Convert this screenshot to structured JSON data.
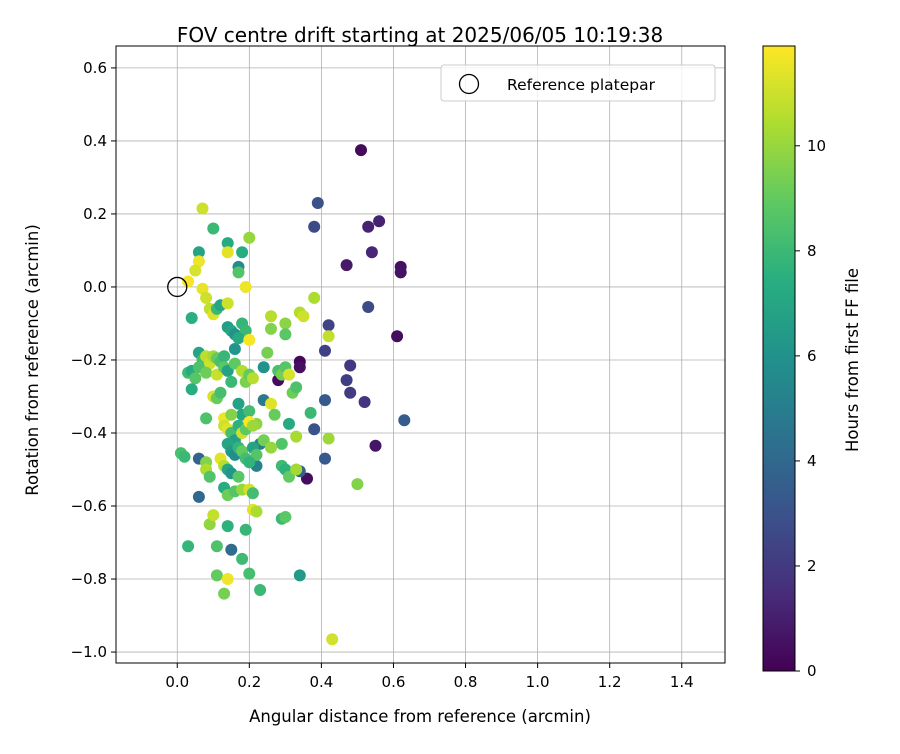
{
  "chart_data": {
    "type": "scatter",
    "title": "FOV centre drift starting at 2025/06/05 10:19:38",
    "xlabel": "Angular distance from reference (arcmin)",
    "ylabel": "Rotation from reference (arcmin)",
    "xlim": [
      -0.17,
      1.52
    ],
    "ylim": [
      -1.03,
      0.66
    ],
    "xticks": [
      0.0,
      0.2,
      0.4,
      0.6,
      0.8,
      1.0,
      1.2,
      1.4
    ],
    "xtick_labels": [
      "0.0",
      "0.2",
      "0.4",
      "0.6",
      "0.8",
      "1.0",
      "1.2",
      "1.4"
    ],
    "yticks": [
      0.6,
      0.4,
      0.2,
      0.0,
      -0.2,
      -0.4,
      -0.6,
      -0.8,
      -1.0
    ],
    "ytick_labels": [
      "0.6",
      "0.4",
      "0.2",
      "0.0",
      "−0.2",
      "−0.4",
      "−0.6",
      "−0.8",
      "−1.0"
    ],
    "grid": true,
    "colormap": "viridis",
    "colorbar": {
      "label": "Hours from first FF file",
      "range": [
        0,
        11.9
      ],
      "ticks": [
        0,
        2,
        4,
        6,
        8,
        10
      ],
      "tick_labels": [
        "0",
        "2",
        "4",
        "6",
        "8",
        "10"
      ]
    },
    "legend": {
      "position": "top-right",
      "entries": [
        "Reference platepar"
      ]
    },
    "reference": {
      "x": 0.0,
      "y": 0.0,
      "label": "Reference platepar"
    },
    "points": [
      [
        0.51,
        0.375,
        0.3
      ],
      [
        0.39,
        0.23,
        2.9
      ],
      [
        0.56,
        0.18,
        1.1
      ],
      [
        0.53,
        0.165,
        1.2
      ],
      [
        0.38,
        0.165,
        2.6
      ],
      [
        0.54,
        0.095,
        1.3
      ],
      [
        0.62,
        0.055,
        0.5
      ],
      [
        0.62,
        0.04,
        0.6
      ],
      [
        0.47,
        0.06,
        0.8
      ],
      [
        0.53,
        -0.055,
        2.7
      ],
      [
        0.42,
        -0.105,
        2.4
      ],
      [
        0.61,
        -0.135,
        0.4
      ],
      [
        0.41,
        -0.175,
        2.3
      ],
      [
        0.34,
        -0.205,
        0.2
      ],
      [
        0.34,
        -0.22,
        0.5
      ],
      [
        0.48,
        -0.215,
        1.9
      ],
      [
        0.47,
        -0.255,
        2.2
      ],
      [
        0.28,
        -0.255,
        0.3
      ],
      [
        0.48,
        -0.29,
        2.1
      ],
      [
        0.52,
        -0.315,
        1.8
      ],
      [
        0.41,
        -0.31,
        3.3
      ],
      [
        0.63,
        -0.365,
        3.4
      ],
      [
        0.38,
        -0.39,
        3.0
      ],
      [
        0.55,
        -0.435,
        0.7
      ],
      [
        0.41,
        -0.47,
        3.3
      ],
      [
        0.36,
        -0.525,
        0.4
      ],
      [
        0.34,
        -0.505,
        3.6
      ],
      [
        0.06,
        -0.47,
        3.8
      ],
      [
        0.06,
        -0.575,
        4.0
      ],
      [
        0.15,
        -0.72,
        4.2
      ],
      [
        0.34,
        -0.79,
        6.4
      ],
      [
        0.22,
        -0.49,
        5.2
      ],
      [
        0.23,
        -0.43,
        5.0
      ],
      [
        0.24,
        -0.31,
        4.8
      ],
      [
        0.16,
        -0.17,
        6.2
      ],
      [
        0.17,
        0.055,
        5.8
      ],
      [
        0.06,
        0.095,
        6.9
      ],
      [
        0.14,
        0.12,
        7.2
      ],
      [
        0.18,
        0.095,
        7.4
      ],
      [
        0.1,
        0.16,
        8.0
      ],
      [
        0.17,
        0.04,
        8.6
      ],
      [
        0.07,
        0.215,
        11.0
      ],
      [
        0.2,
        0.135,
        10.0
      ],
      [
        0.14,
        0.095,
        11.4
      ],
      [
        0.06,
        0.07,
        11.6
      ],
      [
        0.05,
        0.045,
        11.2
      ],
      [
        0.03,
        0.015,
        11.8
      ],
      [
        0.07,
        -0.005,
        11.5
      ],
      [
        0.08,
        -0.03,
        11.0
      ],
      [
        0.09,
        -0.06,
        10.8
      ],
      [
        0.1,
        -0.075,
        11.3
      ],
      [
        0.11,
        -0.06,
        8.0
      ],
      [
        0.12,
        -0.05,
        7.0
      ],
      [
        0.14,
        -0.045,
        11.0
      ],
      [
        0.19,
        0.0,
        11.6
      ],
      [
        0.04,
        -0.085,
        7.5
      ],
      [
        0.14,
        -0.11,
        6.5
      ],
      [
        0.15,
        -0.12,
        7.0
      ],
      [
        0.16,
        -0.13,
        6.0
      ],
      [
        0.18,
        -0.1,
        7.8
      ],
      [
        0.19,
        -0.12,
        8.0
      ],
      [
        0.17,
        -0.14,
        7.2
      ],
      [
        0.2,
        -0.145,
        11.8
      ],
      [
        0.25,
        -0.18,
        9.4
      ],
      [
        0.26,
        -0.115,
        9.6
      ],
      [
        0.26,
        -0.08,
        10.6
      ],
      [
        0.3,
        -0.1,
        9.8
      ],
      [
        0.3,
        -0.13,
        8.8
      ],
      [
        0.34,
        -0.07,
        10.5
      ],
      [
        0.35,
        -0.08,
        11.0
      ],
      [
        0.38,
        -0.03,
        10.4
      ],
      [
        0.42,
        -0.135,
        10.8
      ],
      [
        0.06,
        -0.18,
        7.0
      ],
      [
        0.07,
        -0.2,
        8.2
      ],
      [
        0.08,
        -0.19,
        10.7
      ],
      [
        0.09,
        -0.21,
        11.0
      ],
      [
        0.1,
        -0.19,
        10.2
      ],
      [
        0.11,
        -0.195,
        9.0
      ],
      [
        0.12,
        -0.205,
        8.4
      ],
      [
        0.13,
        -0.19,
        7.9
      ],
      [
        0.03,
        -0.235,
        8.1
      ],
      [
        0.04,
        -0.23,
        7.3
      ],
      [
        0.05,
        -0.25,
        8.7
      ],
      [
        0.06,
        -0.22,
        8.5
      ],
      [
        0.08,
        -0.235,
        9.2
      ],
      [
        0.11,
        -0.24,
        10.9
      ],
      [
        0.13,
        -0.22,
        8.8
      ],
      [
        0.14,
        -0.23,
        6.8
      ],
      [
        0.15,
        -0.26,
        8.0
      ],
      [
        0.16,
        -0.21,
        8.9
      ],
      [
        0.18,
        -0.23,
        10.5
      ],
      [
        0.19,
        -0.26,
        9.5
      ],
      [
        0.2,
        -0.24,
        9.0
      ],
      [
        0.21,
        -0.25,
        10.6
      ],
      [
        0.24,
        -0.22,
        6.0
      ],
      [
        0.28,
        -0.23,
        8.4
      ],
      [
        0.29,
        -0.24,
        9.4
      ],
      [
        0.3,
        -0.22,
        8.7
      ],
      [
        0.31,
        -0.24,
        11.2
      ],
      [
        0.32,
        -0.29,
        9.2
      ],
      [
        0.33,
        -0.275,
        8.5
      ],
      [
        0.04,
        -0.28,
        7.4
      ],
      [
        0.1,
        -0.3,
        11.2
      ],
      [
        0.11,
        -0.305,
        9.1
      ],
      [
        0.12,
        -0.29,
        8.3
      ],
      [
        0.17,
        -0.32,
        6.8
      ],
      [
        0.18,
        -0.35,
        7.1
      ],
      [
        0.2,
        -0.34,
        8.2
      ],
      [
        0.22,
        -0.375,
        9.8
      ],
      [
        0.26,
        -0.32,
        11.3
      ],
      [
        0.27,
        -0.35,
        9.1
      ],
      [
        0.29,
        -0.43,
        8.6
      ],
      [
        0.31,
        -0.375,
        7.2
      ],
      [
        0.33,
        -0.41,
        10.3
      ],
      [
        0.37,
        -0.345,
        8.0
      ],
      [
        0.42,
        -0.415,
        10.1
      ],
      [
        0.08,
        -0.36,
        8.5
      ],
      [
        0.13,
        -0.36,
        11.6
      ],
      [
        0.13,
        -0.38,
        11.0
      ],
      [
        0.14,
        -0.39,
        11.4
      ],
      [
        0.15,
        -0.35,
        9.6
      ],
      [
        0.15,
        -0.4,
        8.3
      ],
      [
        0.16,
        -0.42,
        6.6
      ],
      [
        0.17,
        -0.38,
        7.6
      ],
      [
        0.18,
        -0.4,
        11.0
      ],
      [
        0.19,
        -0.39,
        8.9
      ],
      [
        0.2,
        -0.37,
        11.9
      ],
      [
        0.21,
        -0.38,
        10.1
      ],
      [
        0.14,
        -0.43,
        7.0
      ],
      [
        0.15,
        -0.45,
        6.4
      ],
      [
        0.16,
        -0.46,
        5.7
      ],
      [
        0.17,
        -0.44,
        7.8
      ],
      [
        0.18,
        -0.45,
        9.0
      ],
      [
        0.19,
        -0.47,
        8.2
      ],
      [
        0.21,
        -0.44,
        6.9
      ],
      [
        0.22,
        -0.46,
        8.7
      ],
      [
        0.24,
        -0.42,
        9.3
      ],
      [
        0.26,
        -0.44,
        10.0
      ],
      [
        0.29,
        -0.49,
        8.1
      ],
      [
        0.3,
        -0.5,
        7.6
      ],
      [
        0.01,
        -0.455,
        8.4
      ],
      [
        0.02,
        -0.465,
        8.0
      ],
      [
        0.08,
        -0.48,
        9.6
      ],
      [
        0.08,
        -0.5,
        10.4
      ],
      [
        0.09,
        -0.52,
        8.6
      ],
      [
        0.12,
        -0.47,
        11.4
      ],
      [
        0.13,
        -0.49,
        10.6
      ],
      [
        0.14,
        -0.5,
        7.1
      ],
      [
        0.15,
        -0.51,
        6.2
      ],
      [
        0.17,
        -0.52,
        8.8
      ],
      [
        0.2,
        -0.48,
        7.7
      ],
      [
        0.31,
        -0.52,
        9.0
      ],
      [
        0.33,
        -0.5,
        10.2
      ],
      [
        0.13,
        -0.55,
        7.3
      ],
      [
        0.14,
        -0.57,
        9.2
      ],
      [
        0.16,
        -0.56,
        8.7
      ],
      [
        0.18,
        -0.555,
        10.0
      ],
      [
        0.2,
        -0.555,
        11.1
      ],
      [
        0.21,
        -0.565,
        8.2
      ],
      [
        0.21,
        -0.61,
        11.4
      ],
      [
        0.22,
        -0.615,
        10.4
      ],
      [
        0.29,
        -0.635,
        8.0
      ],
      [
        0.3,
        -0.63,
        8.8
      ],
      [
        0.5,
        -0.54,
        9.6
      ],
      [
        0.09,
        -0.65,
        9.9
      ],
      [
        0.1,
        -0.625,
        10.8
      ],
      [
        0.14,
        -0.655,
        7.6
      ],
      [
        0.19,
        -0.665,
        7.9
      ],
      [
        0.03,
        -0.71,
        7.8
      ],
      [
        0.11,
        -0.71,
        8.5
      ],
      [
        0.18,
        -0.745,
        8.1
      ],
      [
        0.11,
        -0.79,
        9.0
      ],
      [
        0.14,
        -0.8,
        11.6
      ],
      [
        0.2,
        -0.785,
        8.3
      ],
      [
        0.13,
        -0.84,
        9.4
      ],
      [
        0.23,
        -0.83,
        8.0
      ],
      [
        0.43,
        -0.965,
        11.1
      ]
    ]
  }
}
